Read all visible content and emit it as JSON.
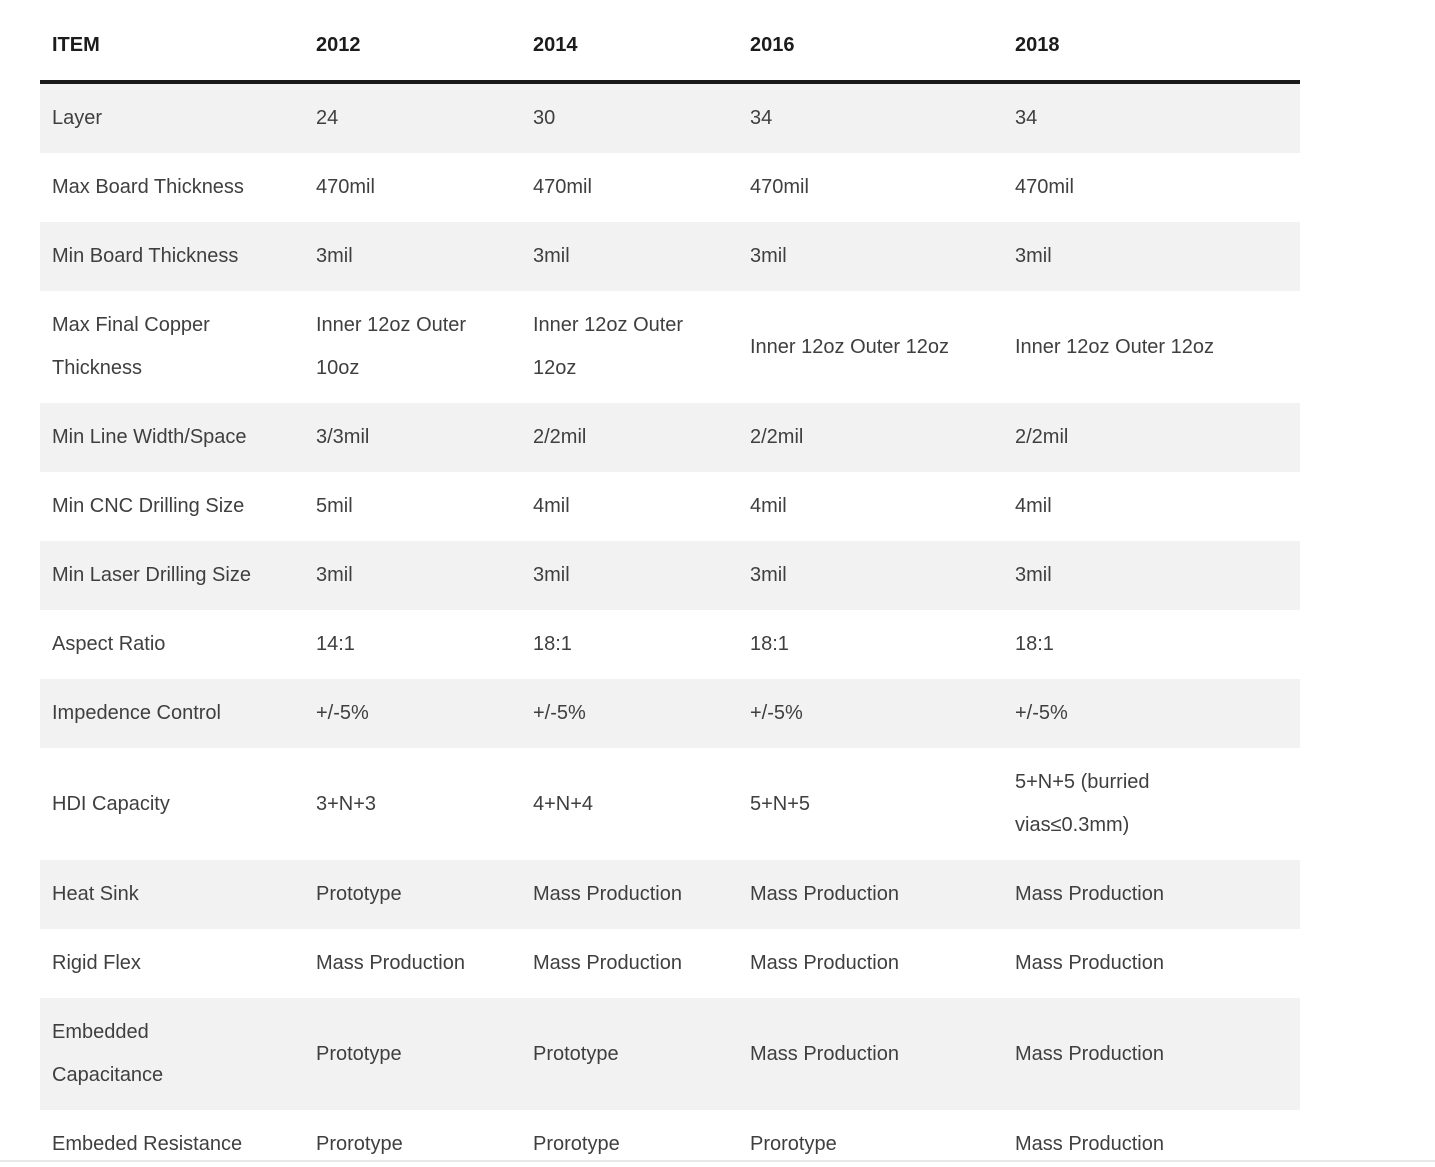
{
  "table": {
    "columns": [
      "ITEM",
      "2012",
      "2014",
      "2016",
      "2018"
    ],
    "rows": [
      {
        "item": "Layer",
        "values": [
          "24",
          "30",
          "34",
          "34"
        ]
      },
      {
        "item": "Max Board Thickness",
        "values": [
          "470mil",
          "470mil",
          "470mil",
          "470mil"
        ]
      },
      {
        "item": "Min Board Thickness",
        "values": [
          "3mil",
          "3mil",
          "3mil",
          "3mil"
        ]
      },
      {
        "item": "Max Final Copper\nThickness",
        "values": [
          "Inner 12oz Outer\n10oz",
          "Inner 12oz Outer\n12oz",
          "Inner 12oz Outer 12oz",
          "Inner 12oz Outer 12oz"
        ]
      },
      {
        "item": "Min Line Width/Space",
        "values": [
          "3/3mil",
          "2/2mil",
          "2/2mil",
          "2/2mil"
        ]
      },
      {
        "item": "Min CNC Drilling Size",
        "values": [
          "5mil",
          "4mil",
          "4mil",
          "4mil"
        ]
      },
      {
        "item": "Min Laser Drilling Size",
        "values": [
          "3mil",
          "3mil",
          "3mil",
          "3mil"
        ]
      },
      {
        "item": "Aspect Ratio",
        "values": [
          "14:1",
          "18:1",
          "18:1",
          "18:1"
        ]
      },
      {
        "item": "Impedence Control",
        "values": [
          "+/-5%",
          "+/-5%",
          "+/-5%",
          "+/-5%"
        ]
      },
      {
        "item": "HDI Capacity",
        "values": [
          "3+N+3",
          "4+N+4",
          "5+N+5",
          "5+N+5 (burried\nvias≤0.3mm)"
        ]
      },
      {
        "item": "Heat Sink",
        "values": [
          "Prototype",
          "Mass Production",
          "Mass Production",
          "Mass Production"
        ]
      },
      {
        "item": "Rigid Flex",
        "values": [
          "Mass Production",
          "Mass Production",
          "Mass Production",
          "Mass Production"
        ]
      },
      {
        "item": "Embedded\nCapacitance",
        "values": [
          "Prototype",
          "Prototype",
          "Mass Production",
          "Mass Production"
        ]
      },
      {
        "item": "Embeded Resistance",
        "values": [
          "Prorotype",
          "Prorotype",
          "Prorotype",
          "Mass Production"
        ]
      }
    ]
  },
  "colors": {
    "row_stripe": "#f2f2f2",
    "header_rule": "#1a1a1a",
    "body_text": "#3f3f3f",
    "header_text": "#1c1c1c",
    "bottom_divider": "#e8e8e8",
    "page_background": "#ffffff"
  }
}
